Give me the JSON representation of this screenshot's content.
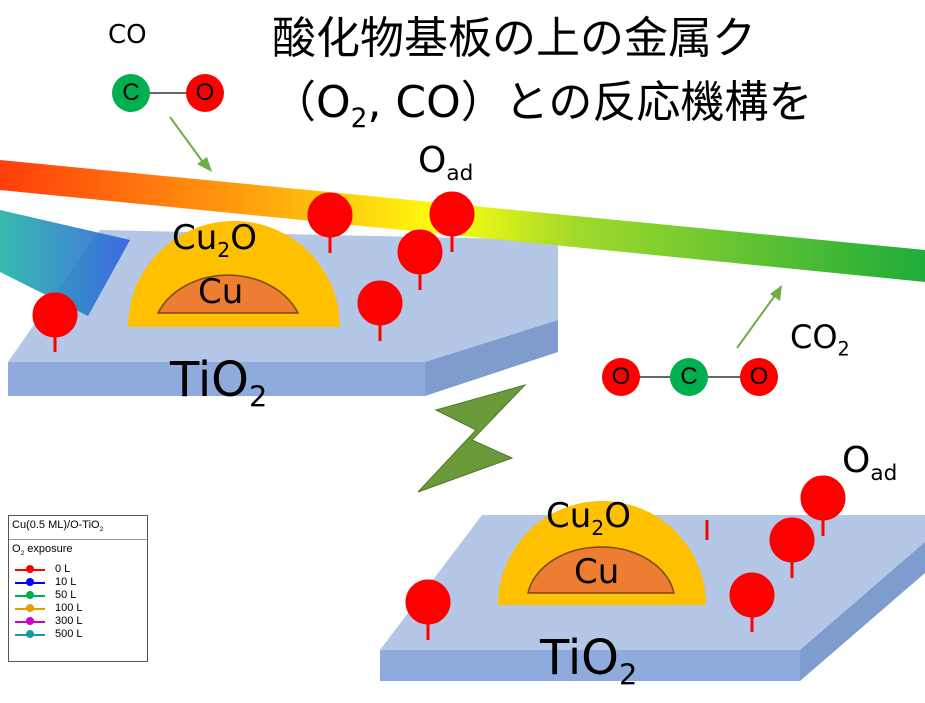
{
  "title": {
    "line1": "酸化物基板の上の金属ク",
    "line2_pre": "（O",
    "line2_sub": "2",
    "line2_post": ", CO）との反応機構を"
  },
  "labels": {
    "co": "CO",
    "co2_main": "CO",
    "co2_sub": "2",
    "oad_main": "O",
    "oad_sub": "ad",
    "cu2o_main": "Cu",
    "cu2o_sub": "2",
    "cu2o_post": "O",
    "cu": "Cu",
    "tio2_main": "TiO",
    "tio2_sub": "2"
  },
  "molecules": {
    "c": "C",
    "o": "O"
  },
  "colors": {
    "substrate_top": "#b4c7e7",
    "substrate_side": "#8faadc",
    "shell": "#ffc000",
    "core": "#ed7d31",
    "oxygen": "#ff0000",
    "carbon": "#00b050",
    "arrow_green": "#70ad47",
    "big_arrow": "#6a9a3a"
  },
  "legend": {
    "title_main": "Cu(0.5 ML)/O-TiO",
    "title_sub": "2",
    "subtitle_main": "O",
    "subtitle_sub": "2",
    "subtitle_post": " exposure",
    "items": [
      {
        "label": "0 L",
        "color": "#ff0000"
      },
      {
        "label": "10 L",
        "color": "#0000ff"
      },
      {
        "label": "50 L",
        "color": "#00b050"
      },
      {
        "label": "100 L",
        "color": "#e0a000"
      },
      {
        "label": "300 L",
        "color": "#cc00cc"
      },
      {
        "label": "500 L",
        "color": "#1a9aa0"
      }
    ]
  }
}
